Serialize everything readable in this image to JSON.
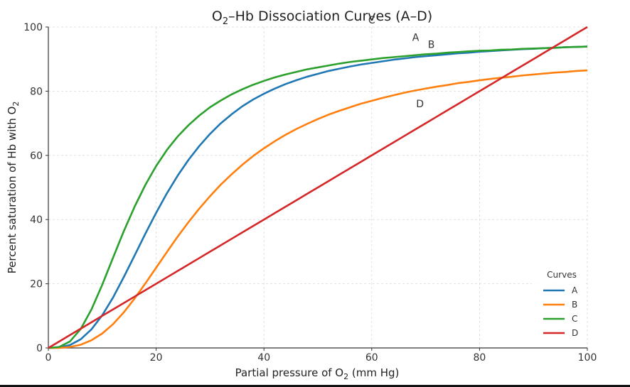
{
  "chart_data": {
    "type": "line",
    "title_main": "O",
    "title_sub": "2",
    "title_rest": "–Hb Dissociation Curves (A–D)",
    "xlabel_main": "Partial pressure of O",
    "xlabel_sub": "2",
    "xlabel_rest": " (mm Hg)",
    "ylabel_main": "Percent saturation of Hb with O",
    "ylabel_sub": "2",
    "xlim": [
      0,
      100
    ],
    "ylim": [
      0,
      100
    ],
    "x_ticks": [
      0,
      20,
      40,
      60,
      80,
      100
    ],
    "y_ticks": [
      0,
      20,
      40,
      60,
      80,
      100
    ],
    "x_tick_labels": [
      "0",
      "20",
      "40",
      "60",
      "80",
      "100"
    ],
    "y_tick_labels": [
      "0",
      "20",
      "40",
      "60",
      "80",
      "100"
    ],
    "grid": true,
    "legend": {
      "title": "Curves",
      "placement": "bottom-right"
    },
    "x": [
      0,
      2,
      4,
      6,
      8,
      10,
      12,
      14,
      16,
      18,
      20,
      22,
      24,
      26,
      28,
      30,
      32,
      34,
      36,
      38,
      40,
      42,
      44,
      46,
      48,
      50,
      52,
      54,
      56,
      58,
      60,
      62,
      64,
      66,
      68,
      70,
      72,
      74,
      76,
      78,
      80,
      82,
      84,
      86,
      88,
      90,
      92,
      94,
      96,
      98,
      100
    ],
    "series": [
      {
        "name": "A",
        "color": "#1f77b4",
        "label_at": [
          70,
          93
        ],
        "values": [
          0,
          0.1,
          0.9,
          2.7,
          5.8,
          10.2,
          15.7,
          22.1,
          28.8,
          35.6,
          42.1,
          48.2,
          53.7,
          58.6,
          62.9,
          66.7,
          70.0,
          72.8,
          75.3,
          77.4,
          79.2,
          80.8,
          82.2,
          83.4,
          84.5,
          85.4,
          86.3,
          87.0,
          87.7,
          88.3,
          88.8,
          89.3,
          89.8,
          90.2,
          90.6,
          90.9,
          91.2,
          91.5,
          91.8,
          92.0,
          92.3,
          92.5,
          92.7,
          92.9,
          93.1,
          93.2,
          93.4,
          93.5,
          93.7,
          93.8,
          93.9
        ]
      },
      {
        "name": "B",
        "color": "#ff7f0e",
        "label_at": [
          70,
          93
        ],
        "values": [
          0,
          0.0,
          0.3,
          1.0,
          2.4,
          4.5,
          7.4,
          11.1,
          15.4,
          20.1,
          25.0,
          29.9,
          34.7,
          39.2,
          43.4,
          47.3,
          50.9,
          54.1,
          57.1,
          59.8,
          62.2,
          64.4,
          66.4,
          68.2,
          69.8,
          71.3,
          72.7,
          73.9,
          75.0,
          76.1,
          77.0,
          77.9,
          78.7,
          79.5,
          80.2,
          80.8,
          81.4,
          81.9,
          82.5,
          82.9,
          83.4,
          83.8,
          84.2,
          84.5,
          84.9,
          85.2,
          85.5,
          85.8,
          86.0,
          86.3,
          86.5
        ]
      },
      {
        "name": "C",
        "color": "#2ca02c",
        "label_at": [
          60,
          100
        ],
        "values": [
          0,
          0.3,
          2.0,
          5.9,
          12.0,
          19.7,
          28.1,
          36.4,
          44.0,
          50.8,
          56.7,
          61.7,
          65.9,
          69.4,
          72.4,
          75.0,
          77.1,
          79.0,
          80.6,
          82.0,
          83.2,
          84.3,
          85.2,
          86.0,
          86.8,
          87.4,
          88.0,
          88.6,
          89.1,
          89.5,
          89.9,
          90.3,
          90.6,
          90.9,
          91.2,
          91.5,
          91.7,
          92.0,
          92.2,
          92.4,
          92.6,
          92.7,
          92.9,
          93.0,
          93.2,
          93.3,
          93.4,
          93.5,
          93.7,
          93.8,
          93.9
        ]
      },
      {
        "name": "D",
        "color": "#d62728",
        "label_at": [
          70,
          75
        ],
        "values": [
          0,
          2,
          4,
          6,
          8,
          10,
          12,
          14,
          16,
          18,
          20,
          22,
          24,
          26,
          28,
          30,
          32,
          34,
          36,
          38,
          40,
          42,
          44,
          46,
          48,
          50,
          52,
          54,
          56,
          58,
          60,
          62,
          64,
          66,
          68,
          70,
          72,
          74,
          76,
          78,
          80,
          82,
          84,
          86,
          88,
          90,
          92,
          94,
          96,
          98,
          100
        ]
      }
    ]
  }
}
